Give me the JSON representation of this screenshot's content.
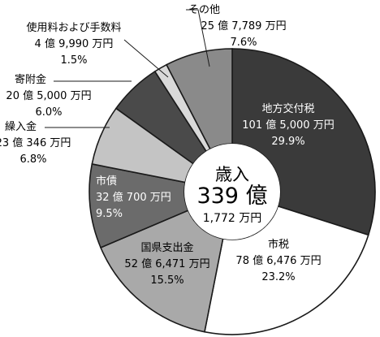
{
  "chart_data": {
    "type": "pie",
    "donut": true,
    "center": {
      "title": "歳入",
      "total": "339 億",
      "sub": "1,772 万円"
    },
    "slices": [
      {
        "name": "地方交付税",
        "amount": "101 億 5,000 万円",
        "percent": 29.9,
        "percent_label": "29.9%",
        "color": "#3a3a3a"
      },
      {
        "name": "市税",
        "amount": "78 億 6,476 万円",
        "percent": 23.2,
        "percent_label": "23.2%",
        "color": "#ffffff"
      },
      {
        "name": "国県支出金",
        "amount": "52 億 6,471 万円",
        "percent": 15.5,
        "percent_label": "15.5%",
        "color": "#a9a9a9"
      },
      {
        "name": "市債",
        "amount": "32 億 700 万円",
        "percent": 9.5,
        "percent_label": "9.5%",
        "color": "#6b6b6b"
      },
      {
        "name": "繰入金",
        "amount": "23 億 346 万円",
        "percent": 6.8,
        "percent_label": "6.8%",
        "color": "#c4c4c4"
      },
      {
        "name": "寄附金",
        "amount": "20 億 5,000 万円",
        "percent": 6.0,
        "percent_label": "6.0%",
        "color": "#4a4a4a"
      },
      {
        "name": "使用料および手数料",
        "amount": "4 億 9,990 万円",
        "percent": 1.5,
        "percent_label": "1.5%",
        "color": "#d9d9d9"
      },
      {
        "name": "その他",
        "amount": "25 億 7,789 万円",
        "percent": 7.6,
        "percent_label": "7.6%",
        "color": "#8a8a8a"
      }
    ]
  }
}
